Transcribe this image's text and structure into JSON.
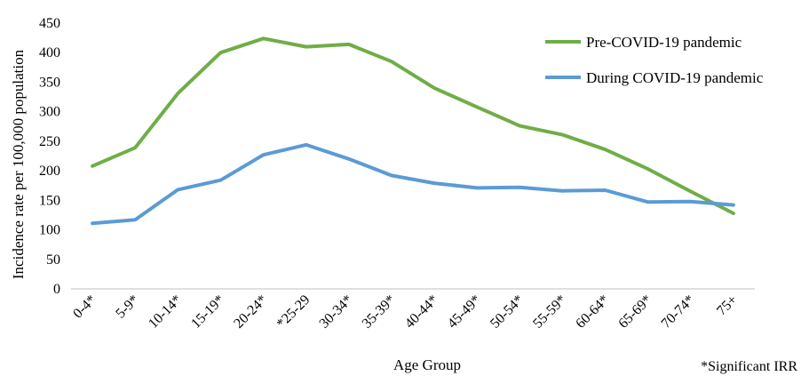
{
  "chart_data": {
    "type": "line",
    "title": "",
    "xlabel": "Age Group",
    "ylabel": "Incidence rate per 100,000 population",
    "note": "*Significant IRR",
    "ylim": [
      0,
      450
    ],
    "yticks": [
      0,
      50,
      100,
      150,
      200,
      250,
      300,
      350,
      400,
      450
    ],
    "grid": false,
    "legend_position": "top-right",
    "categories": [
      "0-4*",
      "5-9*",
      "10-14*",
      "15-19*",
      "20-24*",
      "*25-29",
      "30-34*",
      "35-39*",
      "40-44*",
      "45-49*",
      "50-54*",
      "55-59*",
      "60-64*",
      "65-69*",
      "70-74*",
      "75+"
    ],
    "series": [
      {
        "name": "Pre-COVID-19 pandemic",
        "color": "#70AD47",
        "values": [
          208,
          239,
          331,
          400,
          424,
          410,
          414,
          385,
          340,
          308,
          276,
          261,
          236,
          203,
          165,
          128
        ]
      },
      {
        "name": "During COVID-19 pandemic",
        "color": "#5B9BD5",
        "values": [
          111,
          117,
          168,
          184,
          227,
          244,
          220,
          192,
          179,
          171,
          172,
          166,
          167,
          147,
          148,
          142
        ]
      }
    ]
  }
}
